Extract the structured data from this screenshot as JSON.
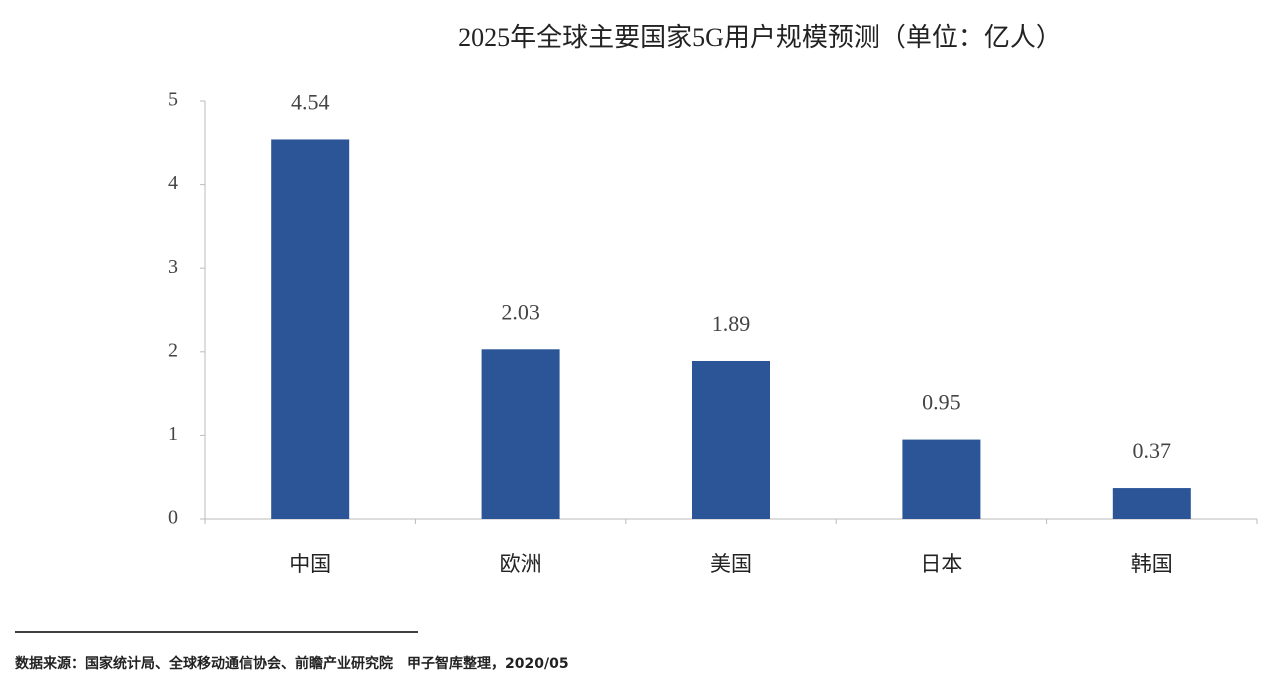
{
  "chart_data": {
    "type": "bar",
    "title": "2025年全球主要国家5G用户规模预测（单位：亿人）",
    "categories": [
      "中国",
      "欧洲",
      "美国",
      "日本",
      "韩国"
    ],
    "values": [
      4.54,
      2.03,
      1.89,
      0.95,
      0.37
    ],
    "color": "#2b5597",
    "ylim": [
      0,
      5
    ],
    "yticks": [
      0,
      1,
      2,
      3,
      4,
      5
    ],
    "grid": false,
    "source": "数据来源：国家统计局、全球移动通信协会、前瞻产业研究院　甲子智库整理，2020/05"
  }
}
